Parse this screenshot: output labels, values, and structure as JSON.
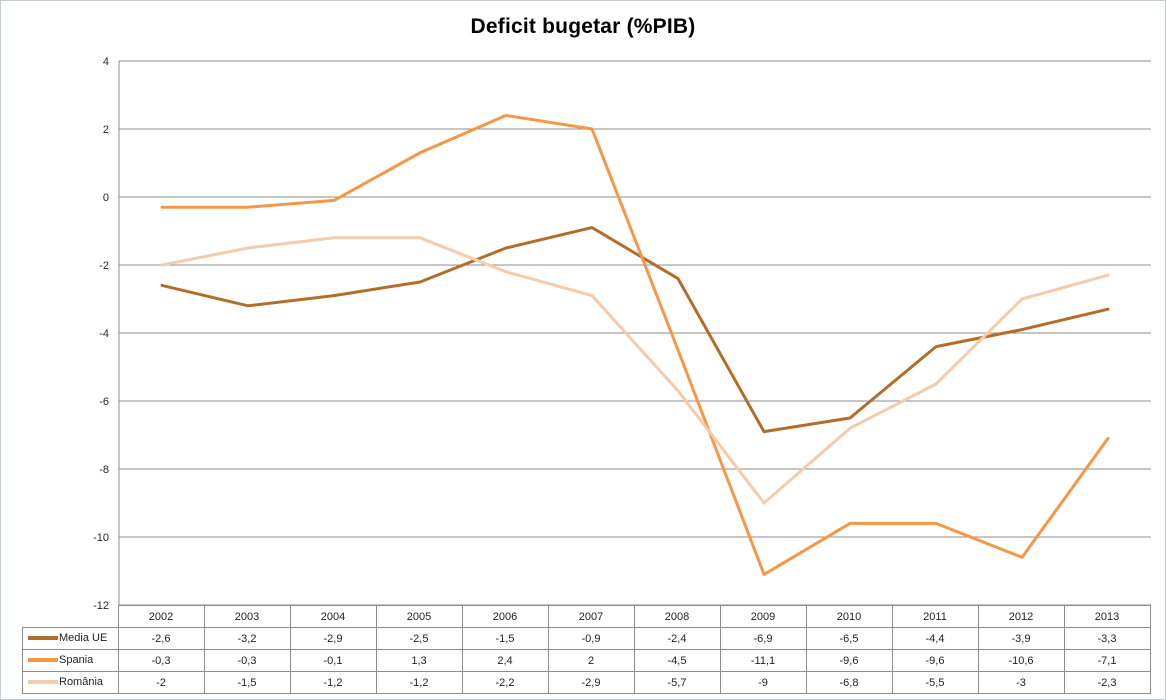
{
  "chart_data": {
    "type": "line",
    "title": "Deficit bugetar (%PIB)",
    "categories": [
      "2002",
      "2003",
      "2004",
      "2005",
      "2006",
      "2007",
      "2008",
      "2009",
      "2010",
      "2011",
      "2012",
      "2013"
    ],
    "series": [
      {
        "key": "media-ue",
        "name": "Media UE",
        "color": "#b26e28",
        "values": [
          -2.6,
          -3.2,
          -2.9,
          -2.5,
          -1.5,
          -0.9,
          -2.4,
          -6.9,
          -6.5,
          -4.4,
          -3.9,
          -3.3
        ]
      },
      {
        "key": "spania",
        "name": "Spania",
        "color": "#f79646",
        "values": [
          -0.3,
          -0.3,
          -0.1,
          1.3,
          2.4,
          2,
          -4.5,
          -11.1,
          -9.6,
          -9.6,
          -10.6,
          -7.1
        ]
      },
      {
        "key": "romania",
        "name": "România",
        "color": "#f4cbab",
        "values": [
          -2,
          -1.5,
          -1.2,
          -1.2,
          -2.2,
          -2.9,
          -5.7,
          -9,
          -6.8,
          -5.5,
          -3,
          -2.3
        ]
      }
    ],
    "xlabel": "",
    "ylabel": "",
    "ylim": [
      -12,
      4
    ],
    "ytick_step": 2,
    "grid": true,
    "grid_color": "#8e8e8e",
    "axis_color": "#8e8e8e",
    "legend_position": "table-left",
    "decimal_separator": ","
  }
}
